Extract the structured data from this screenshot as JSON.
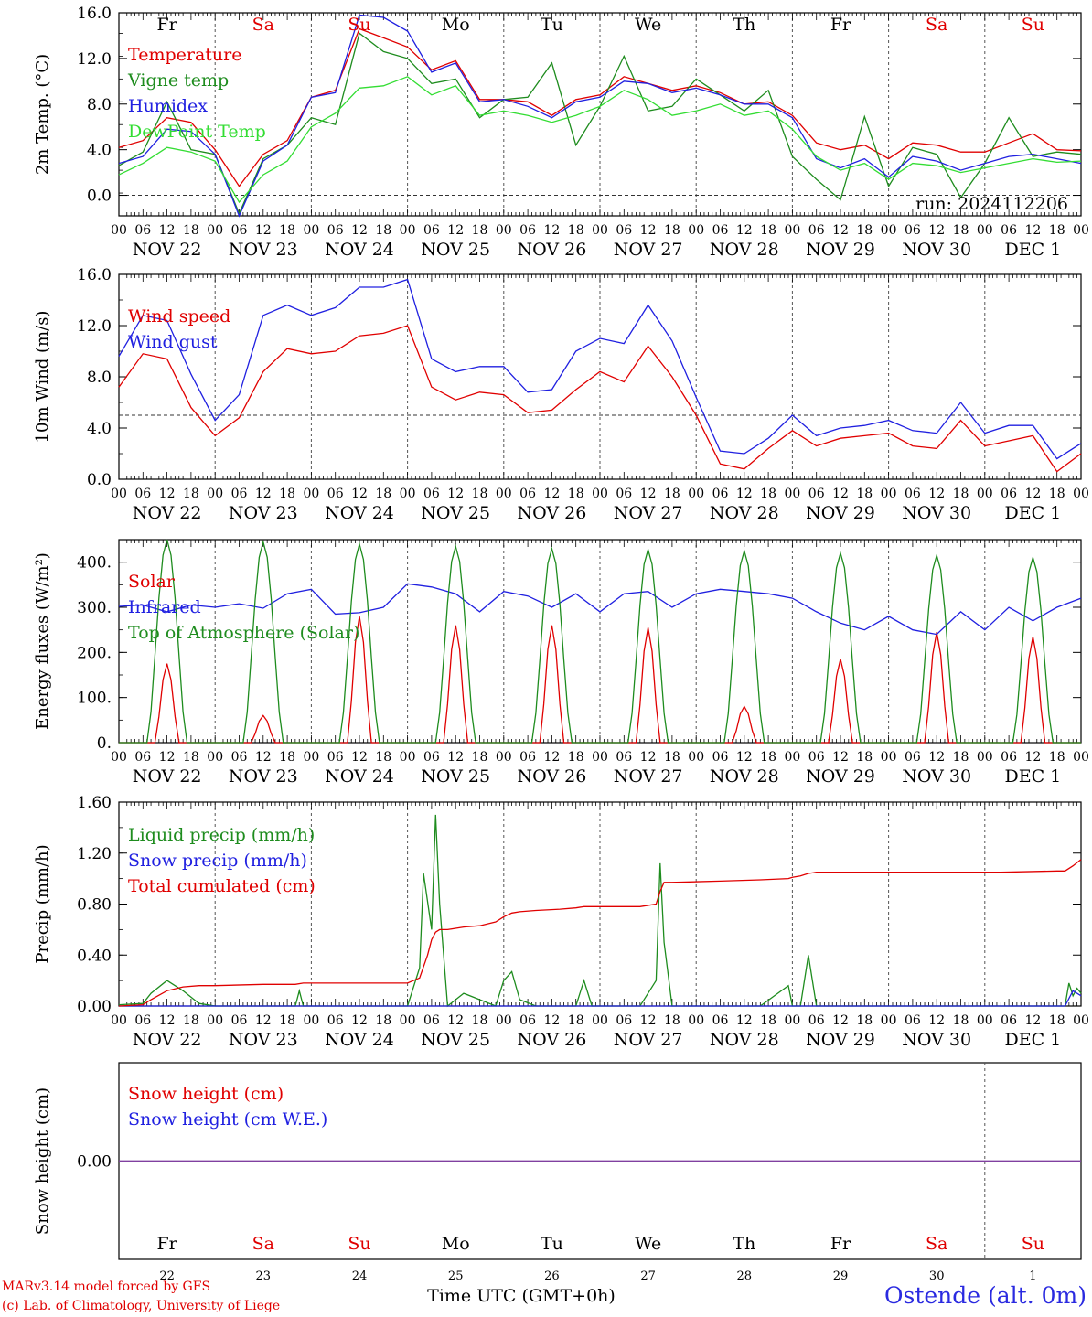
{
  "run_label": "run: 2024112206",
  "x_axis_label": "Time UTC (GMT+0h)",
  "credits": [
    "MARv3.14 model forced by GFS",
    "(c) Lab. of Climatology, University of Liege"
  ],
  "station": "Ostende (alt. 0m)",
  "hour_ticks": [
    "00",
    "06",
    "12",
    "18"
  ],
  "date_labels": [
    "NOV 22",
    "NOV 23",
    "NOV 24",
    "NOV 25",
    "NOV 26",
    "NOV 27",
    "NOV 28",
    "NOV 29",
    "NOV 30",
    "DEC  1"
  ],
  "day_names": [
    "Fr",
    "Sa",
    "Su",
    "Mo",
    "Tu",
    "We",
    "Th",
    "Fr",
    "Sa",
    "Su"
  ],
  "day_numbers": [
    "22",
    "23",
    "24",
    "25",
    "26",
    "27",
    "28",
    "29",
    "30",
    "1"
  ],
  "weekend_flags": [
    false,
    true,
    true,
    false,
    false,
    false,
    false,
    false,
    true,
    true
  ],
  "colors": {
    "red": "#e00000",
    "blue": "#2020e0",
    "green": "#1e8c1e",
    "light_green": "#33dd33",
    "axis": "#000000",
    "weekend": "#e00000",
    "purple": "#8040a0"
  },
  "chart_data": [
    {
      "type": "line",
      "ylabel": "2m Temp. (°C)",
      "ylim": [
        -1.8,
        16.0
      ],
      "yticks": [
        "16.0",
        "12.0",
        "8.0",
        "4.0",
        "0.0"
      ],
      "ytick_values": [
        16,
        12,
        8,
        4,
        0
      ],
      "ref_line": 0,
      "x_unit": "hours since NOV 22 00 UTC",
      "series": [
        {
          "name": "Temperature",
          "color": "#e00000",
          "x": [
            0,
            6,
            12,
            18,
            24,
            30,
            36,
            42,
            48,
            54,
            60,
            66,
            72,
            78,
            84,
            90,
            96,
            102,
            108,
            114,
            120,
            126,
            132,
            138,
            144,
            150,
            156,
            162,
            168,
            174,
            180,
            186,
            192,
            198,
            204,
            210,
            216,
            222,
            228,
            234,
            240
          ],
          "y": [
            4.2,
            4.8,
            6.8,
            6.4,
            4.0,
            0.8,
            3.6,
            4.8,
            8.6,
            9.2,
            14.6,
            13.8,
            13.0,
            11.0,
            11.8,
            8.4,
            8.4,
            8.2,
            7.0,
            8.4,
            8.8,
            10.4,
            9.8,
            9.2,
            9.6,
            9.0,
            8.0,
            8.2,
            7.0,
            4.6,
            4.0,
            4.4,
            3.2,
            4.6,
            4.4,
            3.8,
            3.8,
            4.6,
            5.4,
            4.0,
            3.9
          ]
        },
        {
          "name": "Vigne temp",
          "color": "#1e8c1e",
          "x": [
            0,
            6,
            12,
            18,
            24,
            30,
            36,
            42,
            48,
            54,
            60,
            66,
            72,
            78,
            84,
            90,
            96,
            102,
            108,
            114,
            120,
            126,
            132,
            138,
            144,
            150,
            156,
            162,
            168,
            174,
            180,
            186,
            192,
            198,
            204,
            210,
            216,
            222,
            228,
            234,
            240
          ],
          "y": [
            2.6,
            3.8,
            8.2,
            4.0,
            3.6,
            -1.6,
            3.2,
            4.4,
            6.8,
            6.2,
            14.2,
            12.6,
            12.0,
            9.8,
            10.2,
            6.8,
            8.4,
            8.6,
            11.6,
            4.4,
            7.8,
            12.2,
            7.4,
            7.8,
            10.2,
            8.8,
            7.4,
            9.2,
            3.4,
            1.4,
            -0.4,
            6.9,
            0.8,
            4.2,
            3.6,
            -0.2,
            2.8,
            6.8,
            3.4,
            3.8,
            3.6
          ]
        },
        {
          "name": "Humidex",
          "color": "#2020e0",
          "x": [
            0,
            6,
            12,
            18,
            24,
            30,
            36,
            42,
            48,
            54,
            60,
            66,
            72,
            78,
            84,
            90,
            96,
            102,
            108,
            114,
            120,
            126,
            132,
            138,
            144,
            150,
            156,
            162,
            168,
            174,
            180,
            186,
            192,
            198,
            204,
            210,
            216,
            222,
            228,
            234,
            240
          ],
          "y": [
            2.8,
            3.4,
            5.8,
            5.6,
            3.6,
            -1.8,
            3.0,
            4.4,
            8.6,
            9.0,
            15.8,
            15.6,
            14.4,
            10.8,
            11.6,
            8.2,
            8.4,
            7.8,
            6.8,
            8.2,
            8.6,
            10.0,
            9.8,
            9.0,
            9.4,
            8.8,
            8.0,
            8.0,
            6.8,
            3.2,
            2.4,
            3.2,
            1.6,
            3.4,
            3.0,
            2.2,
            2.8,
            3.4,
            3.6,
            3.2,
            2.8
          ]
        },
        {
          "name": "DewPoint Temp",
          "color": "#33dd33",
          "x": [
            0,
            6,
            12,
            18,
            24,
            30,
            36,
            42,
            48,
            54,
            60,
            66,
            72,
            78,
            84,
            90,
            96,
            102,
            108,
            114,
            120,
            126,
            132,
            138,
            144,
            150,
            156,
            162,
            168,
            174,
            180,
            186,
            192,
            198,
            204,
            210,
            216,
            222,
            228,
            234,
            240
          ],
          "y": [
            1.8,
            2.8,
            4.2,
            3.8,
            3.0,
            -0.6,
            1.8,
            3.0,
            6.0,
            7.2,
            9.4,
            9.6,
            10.4,
            8.8,
            9.6,
            7.0,
            7.4,
            7.0,
            6.4,
            7.0,
            7.8,
            9.2,
            8.4,
            7.0,
            7.4,
            8.0,
            7.0,
            7.4,
            5.8,
            3.4,
            2.2,
            2.8,
            1.4,
            2.8,
            2.6,
            2.0,
            2.4,
            2.8,
            3.2,
            2.9,
            3.0
          ]
        }
      ]
    },
    {
      "type": "line",
      "ylabel": "10m Wind (m/s)",
      "ylim": [
        0.0,
        16.0
      ],
      "yticks": [
        "16.0",
        "12.0",
        "8.0",
        "4.0",
        "0.0"
      ],
      "ytick_values": [
        16,
        12,
        8,
        4,
        0
      ],
      "ref_line": 5,
      "x_unit": "hours since NOV 22 00 UTC",
      "series": [
        {
          "name": "Wind speed",
          "color": "#e00000",
          "x": [
            0,
            6,
            12,
            18,
            24,
            30,
            36,
            42,
            48,
            54,
            60,
            66,
            72,
            78,
            84,
            90,
            96,
            102,
            108,
            114,
            120,
            126,
            132,
            138,
            144,
            150,
            156,
            162,
            168,
            174,
            180,
            186,
            192,
            198,
            204,
            210,
            216,
            222,
            228,
            234,
            240
          ],
          "y": [
            7.2,
            9.8,
            9.4,
            5.6,
            3.4,
            4.8,
            8.4,
            10.2,
            9.8,
            10.0,
            11.2,
            11.4,
            12.0,
            7.2,
            6.2,
            6.8,
            6.6,
            5.2,
            5.4,
            7.0,
            8.4,
            7.6,
            10.4,
            8.0,
            5.0,
            1.2,
            0.8,
            2.4,
            3.8,
            2.6,
            3.2,
            3.4,
            3.6,
            2.6,
            2.4,
            4.6,
            2.6,
            3.0,
            3.4,
            0.6,
            2.0
          ]
        },
        {
          "name": "Wind gust",
          "color": "#2020e0",
          "x": [
            0,
            6,
            12,
            18,
            24,
            30,
            36,
            42,
            48,
            54,
            60,
            66,
            72,
            78,
            84,
            90,
            96,
            102,
            108,
            114,
            120,
            126,
            132,
            138,
            144,
            150,
            156,
            162,
            168,
            174,
            180,
            186,
            192,
            198,
            204,
            210,
            216,
            222,
            228,
            234,
            240
          ],
          "y": [
            9.6,
            12.8,
            12.4,
            8.2,
            4.6,
            6.6,
            12.8,
            13.6,
            12.8,
            13.4,
            15.0,
            15.0,
            15.6,
            9.4,
            8.4,
            8.8,
            8.8,
            6.8,
            7.0,
            10.0,
            11.0,
            10.6,
            13.6,
            10.8,
            6.4,
            2.2,
            2.0,
            3.2,
            5.0,
            3.4,
            4.0,
            4.2,
            4.6,
            3.8,
            3.6,
            6.0,
            3.6,
            4.2,
            4.2,
            1.6,
            2.8
          ]
        }
      ]
    },
    {
      "type": "line",
      "ylabel": "Energy fluxes (W/m²)",
      "ylim": [
        0,
        450
      ],
      "yticks": [
        "400.",
        "300.",
        "200.",
        "100.",
        "0."
      ],
      "ytick_values": [
        400,
        300,
        200,
        100,
        0
      ],
      "ref_line": null,
      "x_unit": "hours since NOV 22 00 UTC",
      "series": [
        {
          "name": "Solar",
          "color": "#e00000",
          "day_peaks": [
            175,
            60,
            280,
            260,
            260,
            255,
            80,
            185,
            245,
            235
          ]
        },
        {
          "name": "Infrared",
          "color": "#2020e0",
          "x": [
            0,
            6,
            12,
            18,
            24,
            30,
            36,
            42,
            48,
            54,
            60,
            66,
            72,
            78,
            84,
            90,
            96,
            102,
            108,
            114,
            120,
            126,
            132,
            138,
            144,
            150,
            156,
            162,
            168,
            174,
            180,
            186,
            192,
            198,
            204,
            210,
            216,
            222,
            228,
            234,
            240
          ],
          "y": [
            302,
            305,
            290,
            305,
            300,
            308,
            298,
            330,
            340,
            285,
            288,
            300,
            352,
            345,
            330,
            290,
            335,
            325,
            300,
            330,
            290,
            330,
            335,
            300,
            330,
            340,
            335,
            330,
            320,
            290,
            265,
            250,
            280,
            250,
            240,
            290,
            250,
            300,
            270,
            300,
            320
          ]
        },
        {
          "name": "Top of Atmosphere (Solar)",
          "color": "#1e8c1e",
          "day_peaks": [
            450,
            445,
            440,
            435,
            430,
            428,
            425,
            420,
            415,
            410
          ]
        }
      ]
    },
    {
      "type": "line",
      "ylabel": "Precip (mm/h)",
      "ylim": [
        0.0,
        1.6
      ],
      "yticks": [
        "1.60",
        "1.20",
        "0.80",
        "0.40",
        "0.00"
      ],
      "ytick_values": [
        1.6,
        1.2,
        0.8,
        0.4,
        0
      ],
      "ref_line": null,
      "x_unit": "hours since NOV 22 00 UTC",
      "series": [
        {
          "name": "Liquid precip (mm/h)",
          "color": "#1e8c1e",
          "x": [
            0,
            6,
            8,
            12,
            16,
            20,
            24,
            36,
            44,
            45,
            46,
            48,
            60,
            72,
            75,
            76,
            78,
            79,
            80,
            82,
            86,
            90,
            94,
            96,
            98,
            100,
            104,
            110,
            114,
            116,
            118,
            120,
            130,
            134,
            135,
            136,
            138,
            142,
            150,
            160,
            167,
            168,
            170,
            172,
            174,
            176,
            182,
            200,
            220,
            236,
            237,
            238,
            239,
            240
          ],
          "y": [
            0.01,
            0.02,
            0.1,
            0.2,
            0.12,
            0.02,
            0.0,
            0.0,
            0.0,
            0.12,
            0.0,
            0.0,
            0.0,
            0.0,
            0.3,
            1.04,
            0.6,
            1.5,
            0.8,
            0.0,
            0.1,
            0.05,
            0.0,
            0.2,
            0.27,
            0.05,
            0.0,
            0.0,
            0.0,
            0.2,
            0.0,
            0.0,
            0.0,
            0.2,
            1.12,
            0.5,
            0.0,
            0.0,
            0.0,
            0.0,
            0.16,
            0.0,
            0.0,
            0.4,
            0.0,
            0.0,
            0.0,
            0.0,
            0.0,
            0.0,
            0.18,
            0.08,
            0.14,
            0.1
          ]
        },
        {
          "name": "Snow precip (mm/h)",
          "color": "#2020e0",
          "x": [
            0,
            60,
            120,
            180,
            236,
            238,
            240
          ],
          "y": [
            0.0,
            0.0,
            0.0,
            0.0,
            0.0,
            0.12,
            0.08
          ]
        },
        {
          "name": "Total cumulated (cm)",
          "color": "#e00000",
          "x": [
            0,
            6,
            8,
            12,
            16,
            20,
            24,
            36,
            44,
            46,
            48,
            60,
            72,
            75,
            77,
            78,
            79,
            80,
            82,
            86,
            90,
            94,
            96,
            98,
            100,
            104,
            110,
            114,
            116,
            118,
            120,
            130,
            134,
            135,
            136,
            138,
            150,
            160,
            167,
            168,
            170,
            172,
            174,
            180,
            200,
            220,
            234,
            236,
            238,
            240
          ],
          "y": [
            0.0,
            0.01,
            0.05,
            0.12,
            0.15,
            0.16,
            0.16,
            0.17,
            0.17,
            0.18,
            0.18,
            0.18,
            0.18,
            0.22,
            0.4,
            0.52,
            0.58,
            0.6,
            0.6,
            0.62,
            0.63,
            0.66,
            0.7,
            0.73,
            0.74,
            0.75,
            0.76,
            0.77,
            0.78,
            0.78,
            0.78,
            0.78,
            0.8,
            0.9,
            0.97,
            0.97,
            0.98,
            0.99,
            1.0,
            1.01,
            1.02,
            1.04,
            1.05,
            1.05,
            1.05,
            1.05,
            1.06,
            1.06,
            1.1,
            1.15
          ]
        }
      ]
    },
    {
      "type": "line",
      "ylabel": "Snow height (cm)",
      "ylim": [
        -1,
        1
      ],
      "yticks": [
        "0.00"
      ],
      "ytick_values": [
        0
      ],
      "ref_line": null,
      "x_unit": "hours since NOV 22 00 UTC",
      "series": [
        {
          "name": "Snow height (cm)",
          "color": "#e00000",
          "x": [
            0,
            240
          ],
          "y": [
            0,
            0
          ]
        },
        {
          "name": "Snow height (cm W.E.)",
          "color": "#2020e0",
          "x": [
            0,
            240
          ],
          "y": [
            0,
            0
          ]
        }
      ]
    }
  ]
}
